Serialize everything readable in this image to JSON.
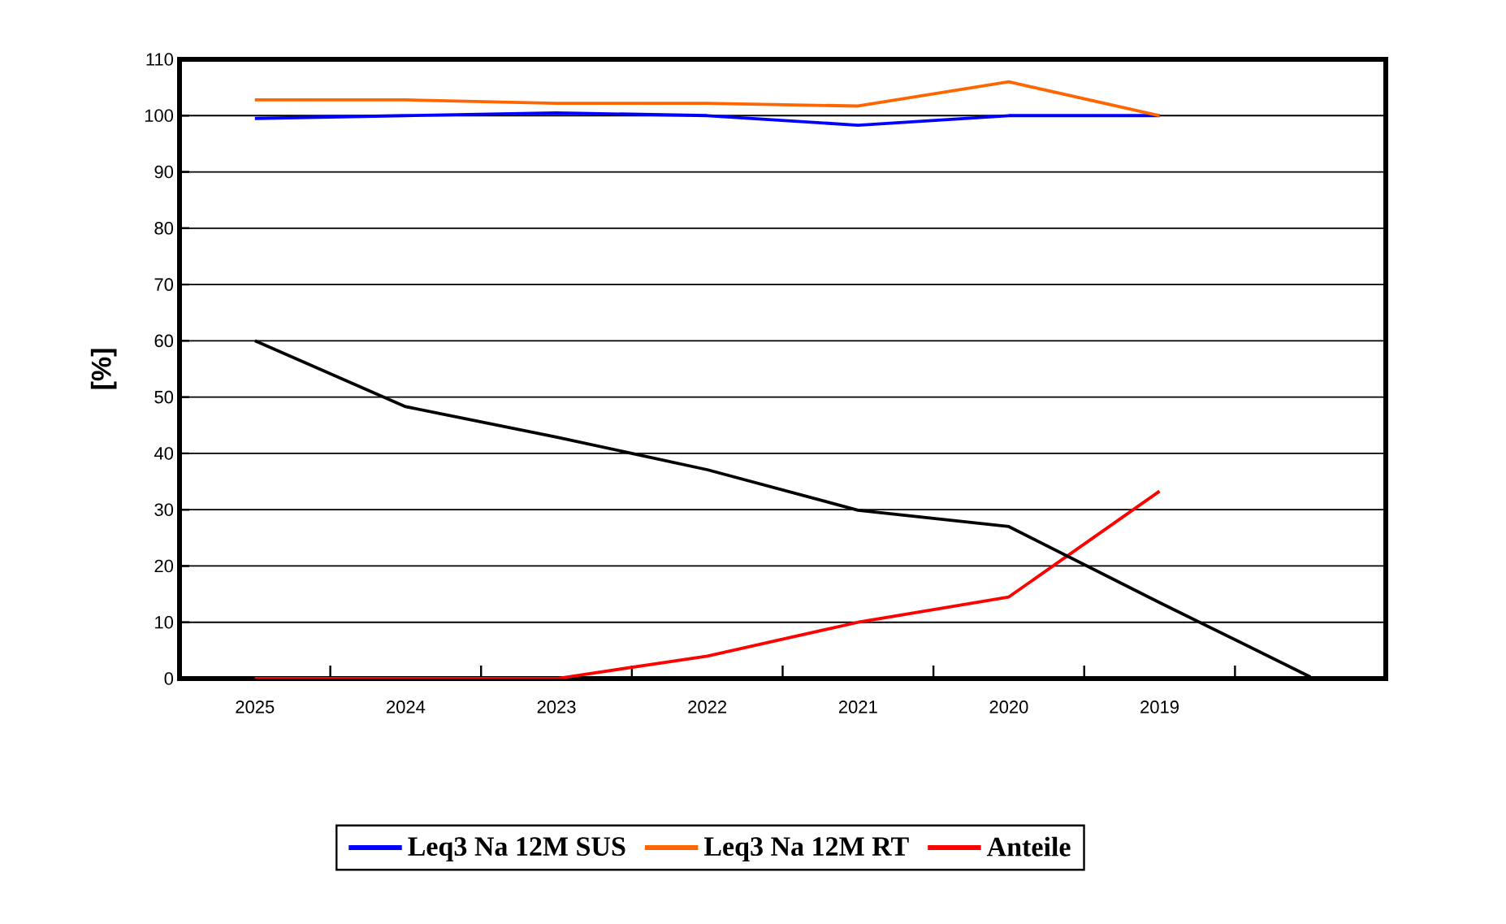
{
  "chart_data": {
    "type": "line",
    "ylabel": "[%]",
    "categories": [
      "2025",
      "2024",
      "2023",
      "2022",
      "2021",
      "2020",
      "2019",
      null
    ],
    "series": [
      {
        "name": "Leq3 Na 12M SUS",
        "color": "#0000ff",
        "values": [
          99.5,
          100,
          100.5,
          100,
          98.3,
          100,
          100,
          null
        ]
      },
      {
        "name": "Leq3 Na 12M RT",
        "color": "#ff6600",
        "values": [
          102.8,
          102.8,
          102.2,
          102.2,
          101.7,
          106,
          100,
          null
        ]
      },
      {
        "name": "Anteile",
        "color": "#ff0000",
        "values": [
          0,
          0,
          0,
          4,
          10,
          14.5,
          33.3,
          null
        ]
      },
      {
        "color": "#000000",
        "values": [
          60,
          48.3,
          42.9,
          37.1,
          29.9,
          27,
          13.5,
          0.3
        ]
      }
    ],
    "ylim": [
      0,
      110
    ],
    "yticks": [
      0,
      10,
      20,
      30,
      40,
      50,
      60,
      70,
      80,
      90,
      100,
      110
    ],
    "grid": "y",
    "legend": "bottom",
    "marker": "none",
    "line_style": "solid"
  }
}
